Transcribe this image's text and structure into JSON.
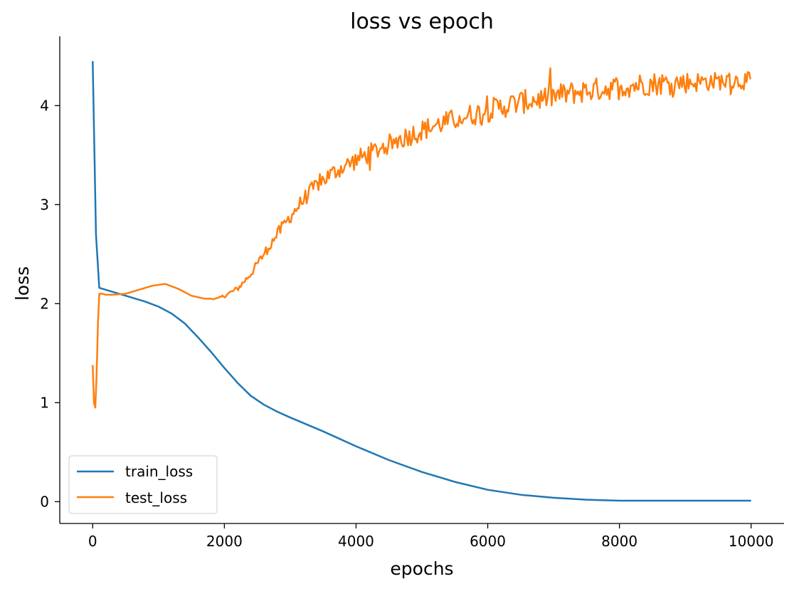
{
  "chart_data": {
    "type": "line",
    "title": "loss vs epoch",
    "xlabel": "epochs",
    "ylabel": "loss",
    "xlim": [
      -500,
      10500
    ],
    "ylim": [
      -0.22,
      4.7
    ],
    "xticks": [
      0,
      2000,
      4000,
      6000,
      8000,
      10000
    ],
    "yticks": [
      0,
      1,
      2,
      3,
      4
    ],
    "grid": false,
    "legend_position": "lower-left",
    "series": [
      {
        "name": "train_loss",
        "color": "#1f77b4",
        "x": [
          0,
          50,
          100,
          200,
          500,
          800,
          1000,
          1200,
          1400,
          1600,
          1800,
          2000,
          2200,
          2400,
          2600,
          2800,
          3000,
          3500,
          4000,
          4500,
          5000,
          5500,
          6000,
          6500,
          7000,
          7500,
          8000,
          9000,
          10000
        ],
        "y": [
          4.45,
          2.7,
          2.16,
          2.14,
          2.08,
          2.02,
          1.97,
          1.9,
          1.8,
          1.66,
          1.51,
          1.35,
          1.2,
          1.07,
          0.98,
          0.91,
          0.85,
          0.71,
          0.56,
          0.42,
          0.3,
          0.2,
          0.12,
          0.07,
          0.04,
          0.02,
          0.01,
          0.01,
          0.01
        ]
      },
      {
        "name": "test_loss",
        "color": "#ff7f0e",
        "x": [
          0,
          20,
          40,
          60,
          80,
          100,
          150,
          200,
          300,
          500,
          700,
          900,
          1100,
          1300,
          1500,
          1700,
          1900,
          2000,
          2200,
          2400,
          2600,
          2800,
          3000,
          3200,
          3400,
          3600,
          3800,
          4000,
          4400,
          4800,
          5200,
          5600,
          6000,
          6400,
          6800,
          7200,
          7600,
          8000,
          8400,
          8800,
          9200,
          9600,
          10000
        ],
        "y": [
          1.38,
          1.0,
          0.95,
          1.3,
          1.8,
          2.1,
          2.1,
          2.09,
          2.09,
          2.1,
          2.14,
          2.18,
          2.2,
          2.15,
          2.08,
          2.05,
          2.05,
          2.08,
          2.15,
          2.3,
          2.5,
          2.7,
          2.88,
          3.05,
          3.2,
          3.3,
          3.38,
          3.45,
          3.58,
          3.7,
          3.8,
          3.88,
          3.95,
          4.02,
          4.07,
          4.12,
          4.16,
          4.19,
          4.22,
          4.23,
          4.24,
          4.25,
          4.25
        ],
        "noise_amplitude": [
          0,
          0,
          0,
          0,
          0,
          0,
          0,
          0,
          0,
          0,
          0,
          0,
          0,
          0,
          0,
          0,
          0.01,
          0.02,
          0.03,
          0.04,
          0.05,
          0.06,
          0.07,
          0.08,
          0.08,
          0.09,
          0.09,
          0.1,
          0.1,
          0.11,
          0.11,
          0.11,
          0.12,
          0.12,
          0.12,
          0.12,
          0.12,
          0.12,
          0.12,
          0.12,
          0.1,
          0.09,
          0.09
        ]
      }
    ]
  }
}
